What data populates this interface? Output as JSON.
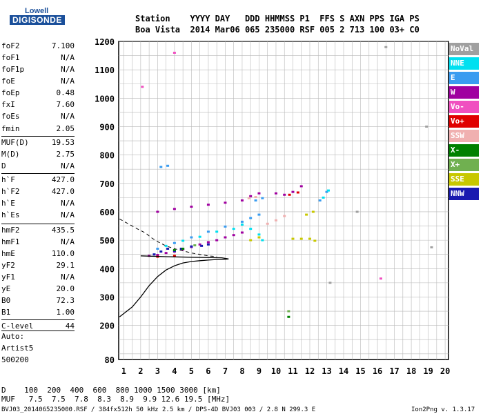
{
  "logo": {
    "line1": "Lowell",
    "line2": "DIGISONDE"
  },
  "header": {
    "row1": "Station    YYYY DAY   DDD HHMMSS P1  FFS S AXN PPS IGA PS",
    "row2": "Boa Vista  2014 Mar06 065 235000 RSF 005 2 713 100 03+ C0"
  },
  "params": [
    {
      "label": "foF2",
      "value": "7.100"
    },
    {
      "label": "foF1",
      "value": "N/A"
    },
    {
      "label": "foF1p",
      "value": "N/A"
    },
    {
      "label": "foE",
      "value": "N/A"
    },
    {
      "label": "foEp",
      "value": "0.48"
    },
    {
      "label": "fxI",
      "value": "7.60"
    },
    {
      "label": "foEs",
      "value": "N/A"
    },
    {
      "label": "fmin",
      "value": "2.05"
    },
    {
      "label": "MUF(D)",
      "value": "19.53"
    },
    {
      "label": "M(D)",
      "value": "2.75"
    },
    {
      "label": "D",
      "value": "N/A"
    },
    {
      "label": "h`F",
      "value": "427.0"
    },
    {
      "label": "h`F2",
      "value": "427.0"
    },
    {
      "label": "h`E",
      "value": "N/A"
    },
    {
      "label": "h`Es",
      "value": "N/A"
    },
    {
      "label": "hmF2",
      "value": "435.5"
    },
    {
      "label": "hmF1",
      "value": "N/A"
    },
    {
      "label": "hmE",
      "value": "110.0"
    },
    {
      "label": "yF2",
      "value": "29.1"
    },
    {
      "label": "yF1",
      "value": "N/A"
    },
    {
      "label": "yE",
      "value": "20.0"
    },
    {
      "label": "B0",
      "value": "72.3"
    },
    {
      "label": "B1",
      "value": "1.00"
    },
    {
      "label": "C-level",
      "value": "44"
    }
  ],
  "auto": {
    "line1": "Auto:",
    "line2": "Artist5",
    "line3": "500200"
  },
  "legend": [
    {
      "label": "NoVal",
      "color": "#a0a0a0"
    },
    {
      "label": "NNE",
      "color": "#00e0f0"
    },
    {
      "label": "E",
      "color": "#3a9cf0"
    },
    {
      "label": "W",
      "color": "#a000a0"
    },
    {
      "label": "Vo-",
      "color": "#f050c0"
    },
    {
      "label": "Vo+",
      "color": "#e00000"
    },
    {
      "label": "SSW",
      "color": "#f0b0b0"
    },
    {
      "label": "X-",
      "color": "#008000"
    },
    {
      "label": "X+",
      "color": "#70b050"
    },
    {
      "label": "SSE",
      "color": "#c8c800"
    },
    {
      "label": "NNW",
      "color": "#1a1ab0"
    }
  ],
  "footer": {
    "d_row": "D    100  200  400  600  800 1000 1500 3000 [km]",
    "muf_row": "MUF   7.5  7.5  7.8  8.3  8.9  9.9 12.6 19.5 [MHz]",
    "file_line": "BVJ03_2014065235000.RSF / 384fx512h 50 kHz 2.5 km / DPS-4D BVJ03 003 / 2.8 N 299.3 E",
    "version": "Ion2Png v. 1.3.17"
  },
  "chart_data": {
    "type": "scatter",
    "title": "",
    "xlabel": "",
    "ylabel": "",
    "xlim": [
      0.7,
      20.2
    ],
    "ylim": [
      80,
      1200
    ],
    "x_ticks": [
      1,
      2,
      3,
      4,
      5,
      6,
      7,
      8,
      9,
      10,
      11,
      12,
      13,
      14,
      15,
      16,
      17,
      18,
      19,
      20
    ],
    "y_ticks": [
      80,
      200,
      300,
      400,
      500,
      600,
      700,
      800,
      900,
      1000,
      1100,
      1200
    ],
    "grid": true,
    "legend_position": "right",
    "series": [
      {
        "name": "W",
        "color": "#a000a0",
        "points": [
          [
            2.5,
            445
          ],
          [
            3.0,
            448
          ],
          [
            3.5,
            455
          ],
          [
            4.0,
            460
          ],
          [
            4.5,
            468
          ],
          [
            5.0,
            476
          ],
          [
            5.5,
            485
          ],
          [
            6.0,
            493
          ],
          [
            6.5,
            500
          ],
          [
            7.0,
            510
          ],
          [
            7.5,
            518
          ],
          [
            8.0,
            527
          ],
          [
            3.0,
            600
          ],
          [
            4.0,
            610
          ],
          [
            5.0,
            618
          ],
          [
            6.0,
            625
          ],
          [
            7.0,
            632
          ],
          [
            8.0,
            640
          ],
          [
            8.5,
            655
          ],
          [
            9.0,
            665
          ],
          [
            10.0,
            665
          ],
          [
            10.5,
            660
          ],
          [
            11.0,
            670
          ],
          [
            11.5,
            690
          ]
        ]
      },
      {
        "name": "E",
        "color": "#3a9cf0",
        "points": [
          [
            3.0,
            470
          ],
          [
            4.0,
            490
          ],
          [
            5.0,
            510
          ],
          [
            6.0,
            530
          ],
          [
            7.0,
            548
          ],
          [
            8.0,
            565
          ],
          [
            8.5,
            578
          ],
          [
            9.0,
            590
          ],
          [
            3.2,
            758
          ],
          [
            3.6,
            762
          ],
          [
            8.8,
            640
          ],
          [
            9.2,
            648
          ],
          [
            12.6,
            640
          ],
          [
            13.0,
            670
          ]
        ]
      },
      {
        "name": "NNE",
        "color": "#00e0f0",
        "points": [
          [
            3.5,
            480
          ],
          [
            4.5,
            498
          ],
          [
            5.5,
            512
          ],
          [
            6.5,
            530
          ],
          [
            7.5,
            540
          ],
          [
            8.0,
            555
          ],
          [
            8.5,
            540
          ],
          [
            9.0,
            520
          ],
          [
            9.2,
            500
          ],
          [
            12.8,
            650
          ],
          [
            13.1,
            675
          ]
        ]
      },
      {
        "name": "NNW",
        "color": "#1a1ab0",
        "points": [
          [
            2.8,
            450
          ],
          [
            3.2,
            460
          ],
          [
            3.6,
            470
          ],
          [
            4.0,
            462
          ],
          [
            4.4,
            470
          ],
          [
            5.0,
            478
          ],
          [
            5.6,
            480
          ],
          [
            6.0,
            485
          ]
        ]
      },
      {
        "name": "SSE",
        "color": "#c8c800",
        "points": [
          [
            8.5,
            500
          ],
          [
            9.0,
            510
          ],
          [
            11.0,
            505
          ],
          [
            11.5,
            505
          ],
          [
            12.0,
            505
          ],
          [
            12.3,
            498
          ],
          [
            11.8,
            590
          ],
          [
            12.2,
            600
          ]
        ]
      },
      {
        "name": "Vo+",
        "color": "#e00000",
        "points": [
          [
            10.8,
            660
          ],
          [
            11.3,
            668
          ],
          [
            3.0,
            442
          ],
          [
            4.0,
            445
          ]
        ]
      },
      {
        "name": "SSW",
        "color": "#f0b0b0",
        "points": [
          [
            9.5,
            558
          ],
          [
            10.0,
            570
          ],
          [
            10.5,
            585
          ],
          [
            8.4,
            648
          ],
          [
            8.8,
            652
          ]
        ]
      },
      {
        "name": "X-",
        "color": "#008000",
        "points": [
          [
            10.75,
            230
          ],
          [
            4.0,
            465
          ],
          [
            4.5,
            470
          ]
        ]
      },
      {
        "name": "X+",
        "color": "#70b050",
        "points": [
          [
            10.75,
            250
          ],
          [
            5.2,
            482
          ]
        ]
      },
      {
        "name": "Vo-",
        "color": "#f050c0",
        "points": [
          [
            4.0,
            1160
          ],
          [
            2.1,
            1040
          ],
          [
            16.2,
            365
          ]
        ]
      },
      {
        "name": "NoVal",
        "color": "#a0a0a0",
        "points": [
          [
            13.2,
            350
          ],
          [
            14.8,
            600
          ],
          [
            16.5,
            1180
          ],
          [
            18.9,
            900
          ],
          [
            19.2,
            475
          ]
        ]
      }
    ],
    "profile_curve": [
      [
        0.75,
        230
      ],
      [
        1.5,
        265
      ],
      [
        2.0,
        300
      ],
      [
        2.5,
        340
      ],
      [
        3.0,
        372
      ],
      [
        3.5,
        395
      ],
      [
        4.0,
        410
      ],
      [
        4.5,
        420
      ],
      [
        5.0,
        425
      ],
      [
        5.5,
        428
      ],
      [
        6.0,
        430
      ],
      [
        6.5,
        432
      ],
      [
        7.0,
        433
      ],
      [
        7.2,
        434
      ],
      [
        6.8,
        438
      ],
      [
        5.0,
        440
      ],
      [
        3.5,
        442
      ],
      [
        2.0,
        445
      ]
    ],
    "dashed_curve": [
      [
        0.75,
        575
      ],
      [
        1.2,
        560
      ],
      [
        1.8,
        540
      ],
      [
        2.3,
        525
      ],
      [
        2.6,
        510
      ],
      [
        3.0,
        495
      ],
      [
        3.5,
        480
      ],
      [
        4.0,
        470
      ],
      [
        5.0,
        455
      ],
      [
        6.0,
        445
      ],
      [
        6.5,
        442
      ]
    ]
  }
}
